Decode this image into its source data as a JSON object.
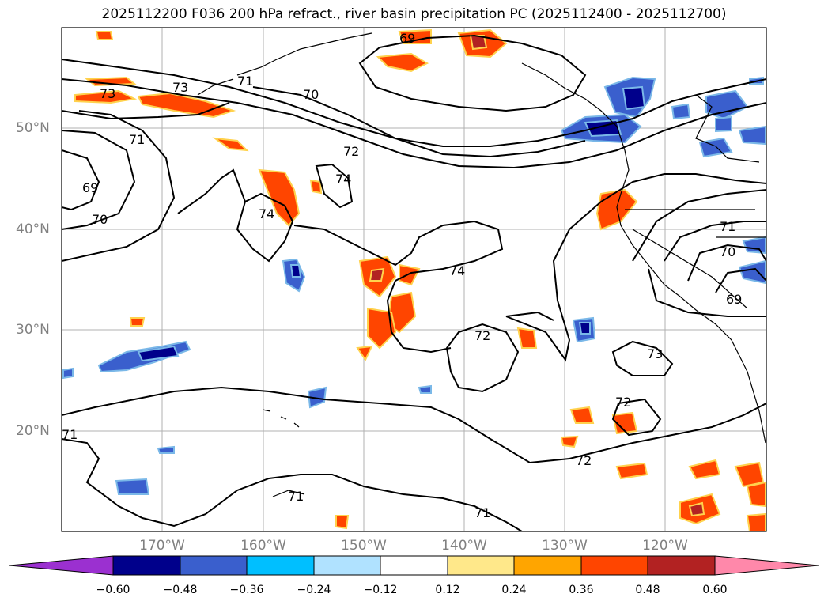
{
  "title": "2025112200 F036 200 hPa refract., river basin precipitation PC (2025112400 - 2025112700)",
  "latitude_labels": [
    "50°N",
    "40°N",
    "30°N",
    "20°N"
  ],
  "longitude_labels": [
    "170°W",
    "160°W",
    "150°W",
    "140°W",
    "130°W",
    "120°W"
  ],
  "contour_labels": [
    "73",
    "73",
    "71",
    "69",
    "70",
    "71",
    "70",
    "72",
    "74",
    "74",
    "69",
    "74",
    "72",
    "73",
    "72",
    "72",
    "71",
    "71",
    "71",
    "70",
    "69",
    "71"
  ],
  "colorbar": {
    "ticks": [
      "−0.60",
      "−0.48",
      "−0.36",
      "−0.24",
      "−0.12",
      "0.12",
      "0.24",
      "0.36",
      "0.48",
      "0.60"
    ],
    "colors": [
      "#9b30d0",
      "#00008b",
      "#3a5fcd",
      "#00bfff",
      "#b0e2ff",
      "#ffffff",
      "#ffe88a",
      "#ffa500",
      "#ff4500",
      "#b22222",
      "#ff88aa"
    ]
  },
  "colors": {
    "contour": "#000000",
    "grid": "#b0b0b0",
    "coast": "#000000"
  }
}
